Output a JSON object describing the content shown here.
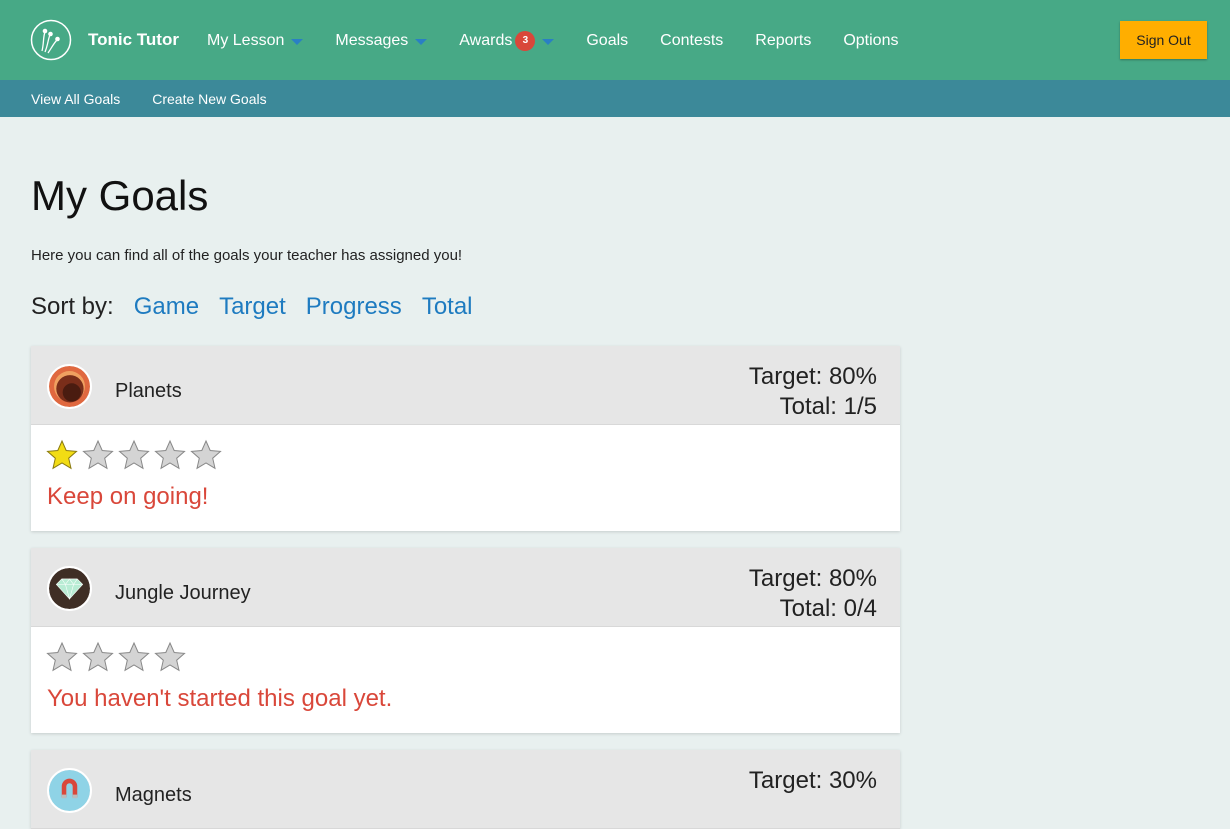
{
  "header": {
    "brand": "Tonic Tutor",
    "nav": [
      {
        "label": "My Lesson",
        "dropdown": true
      },
      {
        "label": "Messages",
        "dropdown": true
      },
      {
        "label": "Awards",
        "badge": "3",
        "dropdown": true
      },
      {
        "label": "Goals"
      },
      {
        "label": "Contests"
      },
      {
        "label": "Reports"
      },
      {
        "label": "Options"
      }
    ],
    "sign_out": "Sign Out"
  },
  "subnav": [
    "View All Goals",
    "Create New Goals"
  ],
  "page": {
    "title": "My Goals",
    "intro": "Here you can find all of the goals your teacher has assigned you!",
    "sort_label": "Sort by:",
    "sort_options": [
      "Game",
      "Target",
      "Progress",
      "Total"
    ]
  },
  "goals": [
    {
      "name": "Planets",
      "icon": "planets-icon",
      "target": "Target: 80%",
      "total": "Total: 1/5",
      "stars_filled": 1,
      "stars_total": 5,
      "message": "Keep on going!"
    },
    {
      "name": "Jungle Journey",
      "icon": "diamond-icon",
      "target": "Target: 80%",
      "total": "Total: 0/4",
      "stars_filled": 0,
      "stars_total": 4,
      "message": "You haven't started this goal yet."
    },
    {
      "name": "Magnets",
      "icon": "magnet-icon",
      "target": "Target: 30%"
    }
  ],
  "colors": {
    "header": "#47a986",
    "subnav": "#3c8999",
    "accent_link": "#1e7bc0",
    "message": "#d9473a",
    "star_filled": "#f2dc14",
    "sign_out": "#ffae00"
  }
}
